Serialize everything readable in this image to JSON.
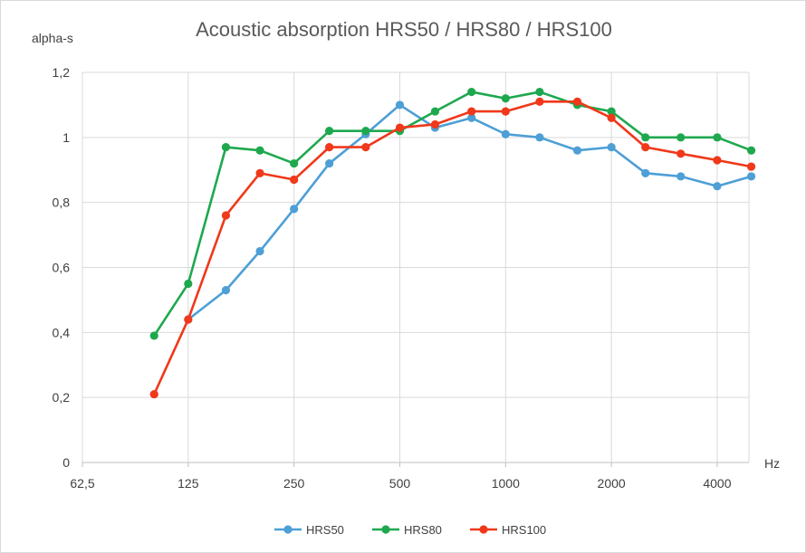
{
  "chart_data": {
    "type": "line",
    "title": "Acoustic absorption HRS50 / HRS80 / HRS100",
    "ylabel": "alpha-s",
    "xlabel": "Hz",
    "x_tick_labels": [
      "62,5",
      "125",
      "250",
      "500",
      "1000",
      "2000",
      "4000"
    ],
    "y_tick_labels": [
      "0",
      "0,2",
      "0,4",
      "0,6",
      "0,8",
      "1",
      "1,2"
    ],
    "ylim": [
      0,
      1.2
    ],
    "y_step": 0.2,
    "x_scale": "log2 frequency (third-octave)",
    "x": [
      100,
      125,
      160,
      200,
      250,
      315,
      400,
      500,
      630,
      800,
      1000,
      1250,
      1600,
      2000,
      2500,
      3150,
      4000,
      5000
    ],
    "grid": true,
    "legend_position": "bottom",
    "series": [
      {
        "name": "HRS50",
        "color": "#4d9fd6",
        "values": [
          null,
          0.44,
          0.53,
          0.65,
          0.78,
          0.92,
          1.01,
          1.1,
          1.03,
          1.06,
          1.01,
          1.0,
          0.96,
          0.97,
          0.89,
          0.88,
          0.85,
          0.88
        ]
      },
      {
        "name": "HRS80",
        "color": "#1ea84e",
        "values": [
          0.39,
          0.55,
          0.97,
          0.96,
          0.92,
          1.02,
          1.02,
          1.02,
          1.08,
          1.14,
          1.12,
          1.14,
          1.1,
          1.08,
          1.0,
          1.0,
          1.0,
          0.96
        ]
      },
      {
        "name": "HRS100",
        "color": "#f0381a",
        "values": [
          0.21,
          0.44,
          0.76,
          0.89,
          0.87,
          0.97,
          0.97,
          1.03,
          1.04,
          1.08,
          1.08,
          1.11,
          1.11,
          1.06,
          0.97,
          0.95,
          0.93,
          0.91
        ]
      }
    ]
  }
}
